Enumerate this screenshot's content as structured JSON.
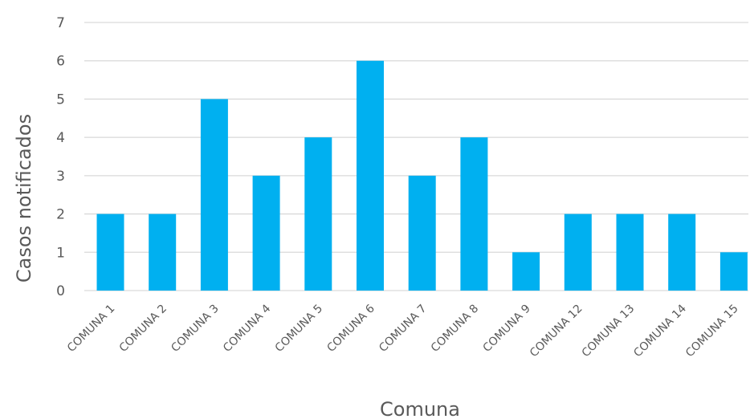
{
  "chart_data": {
    "type": "bar",
    "title": "",
    "xlabel": "Comuna",
    "ylabel": "Casos notificados",
    "categories": [
      "COMUNA 1",
      "COMUNA 2",
      "COMUNA 3",
      "COMUNA 4",
      "COMUNA 5",
      "COMUNA 6",
      "COMUNA 7",
      "COMUNA 8",
      "COMUNA 9",
      "COMUNA 12",
      "COMUNA 13",
      "COMUNA 14",
      "COMUNA 15"
    ],
    "values": [
      2,
      2,
      5,
      3,
      4,
      6,
      3,
      4,
      1,
      2,
      2,
      2,
      1
    ],
    "ylim": [
      0,
      7
    ],
    "yticks": [
      "0",
      "1",
      "2",
      "3",
      "4",
      "5",
      "6",
      "7"
    ],
    "grid": true,
    "legend": "none",
    "bar_color": "#00b0f0",
    "grid_color": "#d9d9d9"
  }
}
